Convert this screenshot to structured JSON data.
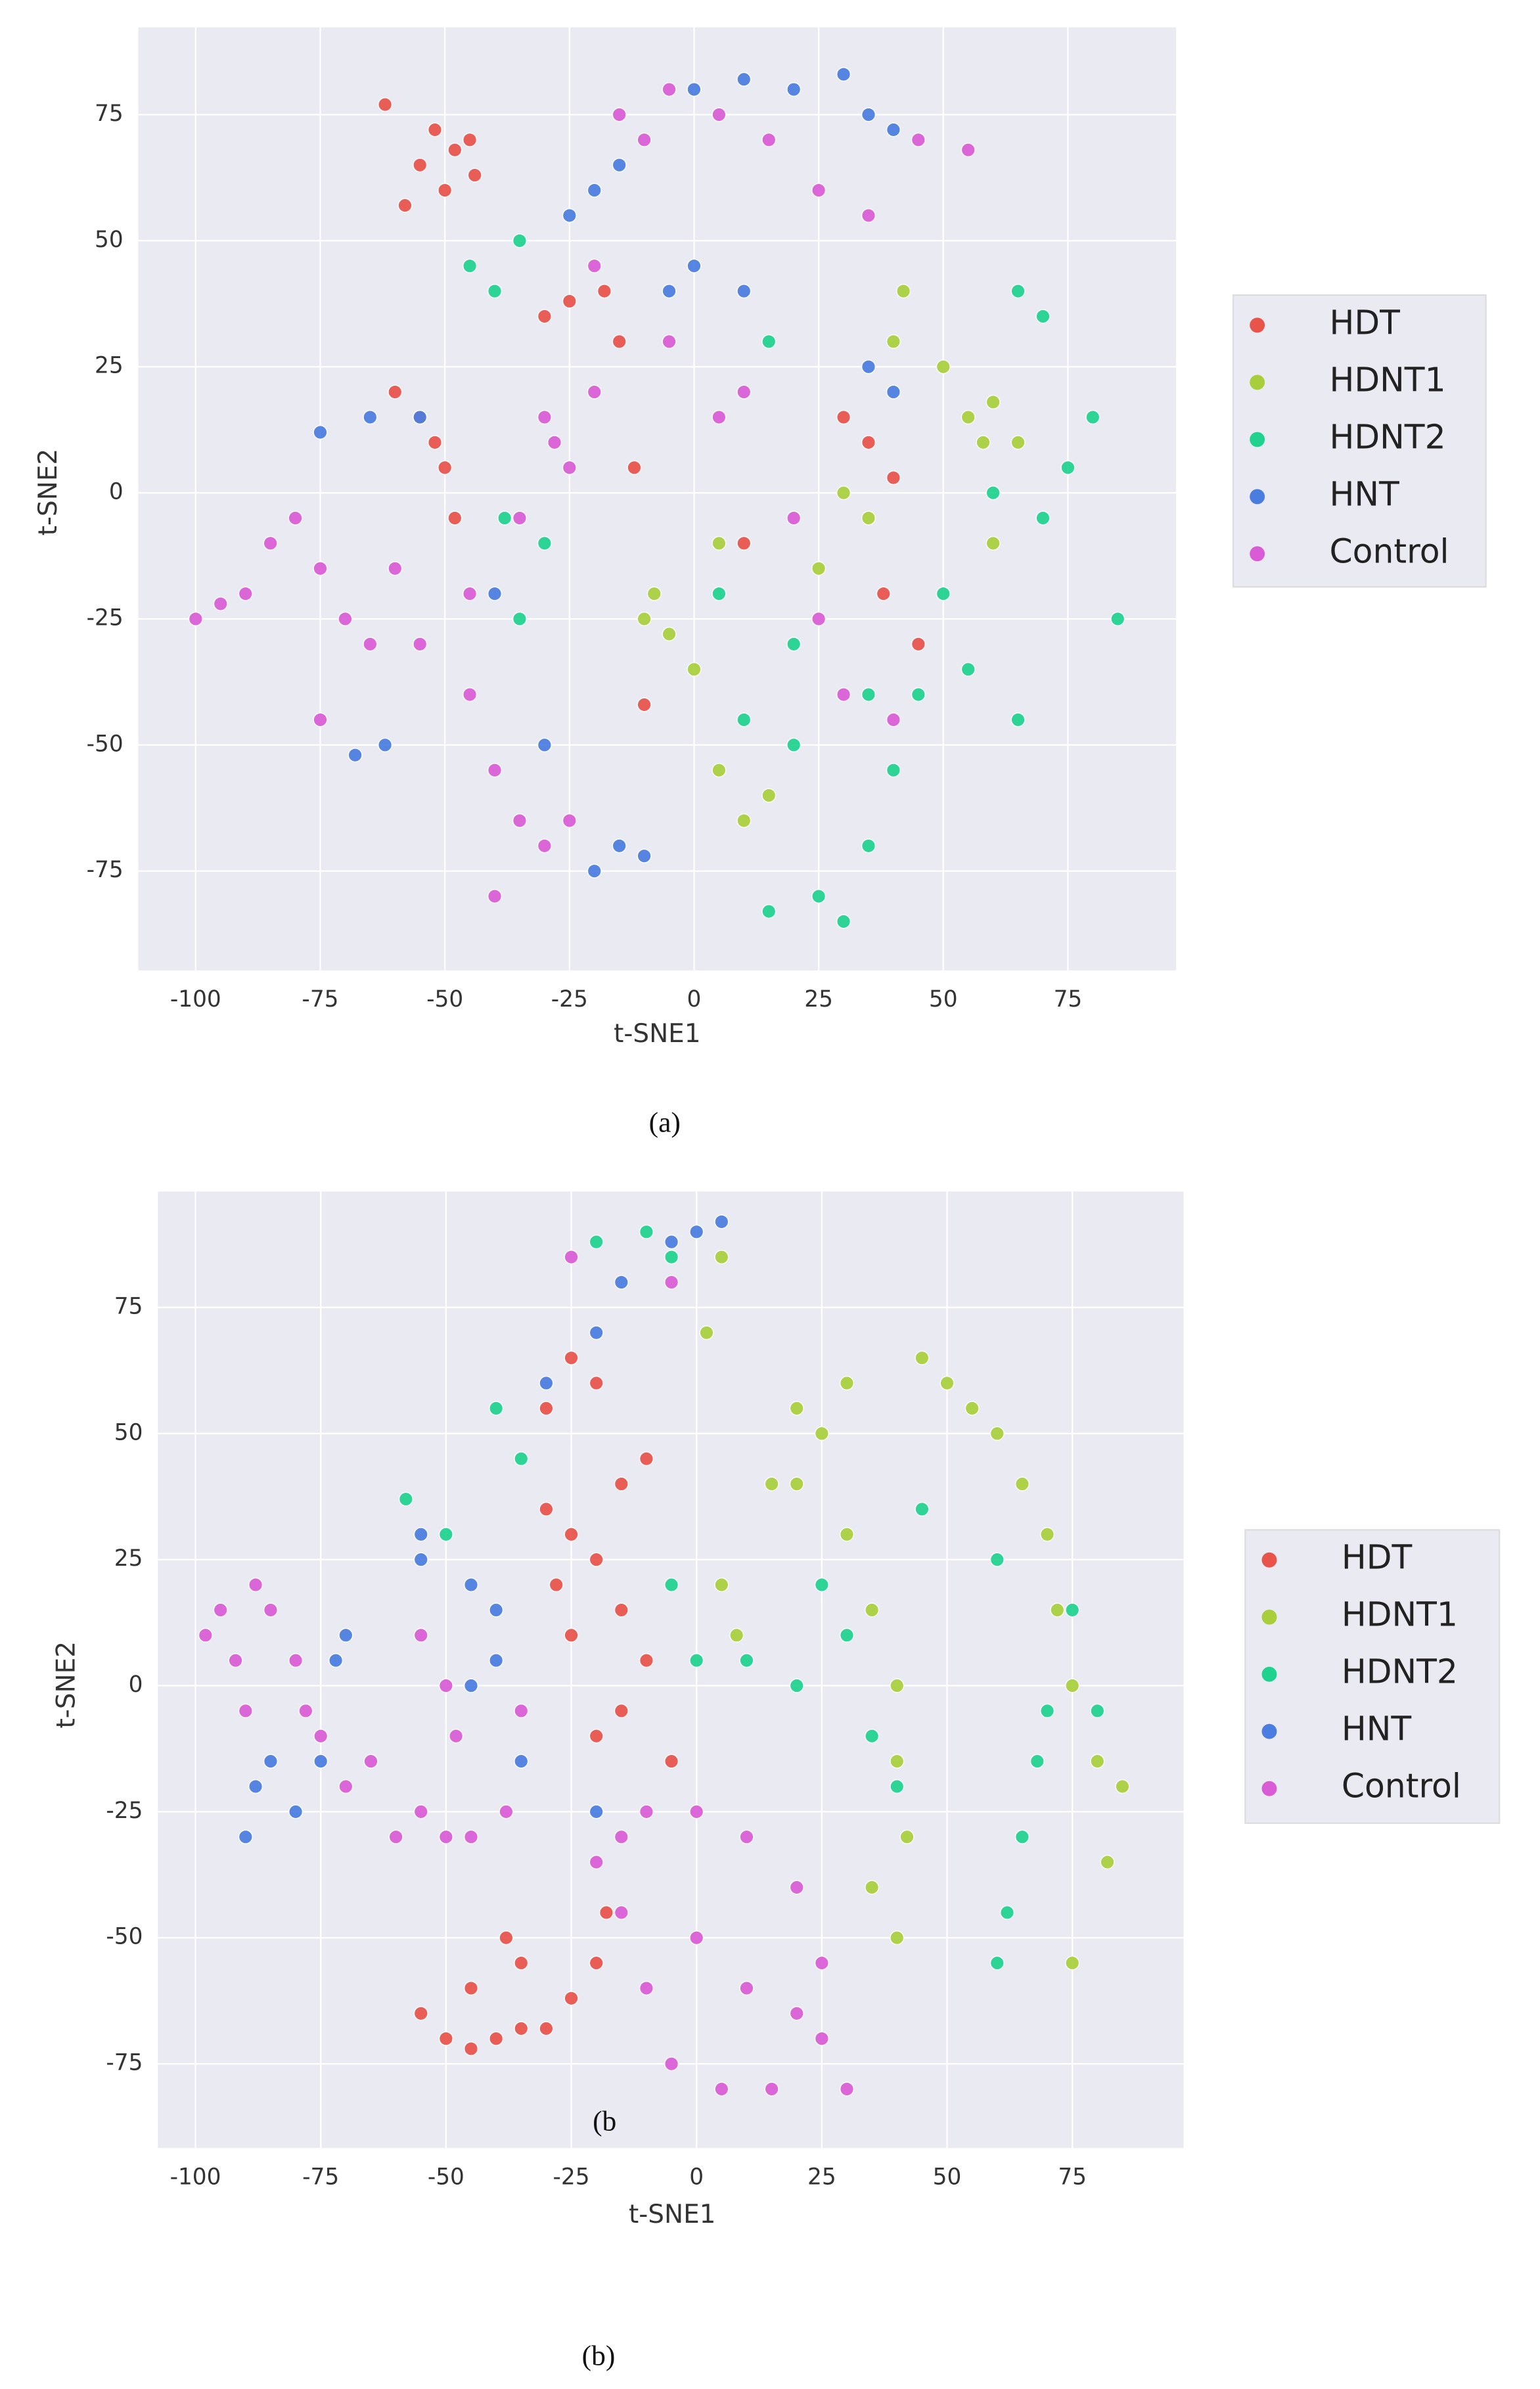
{
  "chart_data": [
    {
      "type": "scatter",
      "xlabel": "t-SNE1",
      "ylabel": "t-SNE2",
      "caption": "(a)",
      "xlim": [
        -111.5,
        96.7
      ],
      "ylim": [
        -94.7,
        92.3
      ],
      "xticks": [
        -100,
        -75,
        -50,
        -25,
        0,
        25,
        50,
        75
      ],
      "yticks": [
        -75,
        -50,
        -25,
        0,
        25,
        50,
        75
      ],
      "grid": true,
      "background": "#eaeaf2",
      "legend": "right",
      "series": [
        {
          "name": "HDT",
          "color": "#e8534a",
          "x": [
            -58,
            -55,
            -52,
            -48,
            -45,
            -50,
            -44,
            -62,
            -60,
            -55,
            -50,
            -48,
            -52,
            -30,
            -25,
            -18,
            -15,
            30,
            35,
            40,
            -12,
            38,
            45,
            -10,
            10
          ],
          "y": [
            57,
            65,
            72,
            68,
            70,
            60,
            63,
            77,
            20,
            15,
            5,
            -5,
            10,
            35,
            38,
            40,
            30,
            15,
            10,
            3,
            5,
            -20,
            -30,
            -42,
            -10
          ]
        },
        {
          "name": "HDNT1",
          "color": "#a8cf3b",
          "x": [
            -10,
            -8,
            -5,
            5,
            30,
            35,
            55,
            60,
            65,
            58,
            40,
            42,
            10,
            15,
            5,
            60,
            0,
            25,
            50
          ],
          "y": [
            -25,
            -20,
            -28,
            -10,
            0,
            -5,
            15,
            18,
            10,
            10,
            30,
            40,
            -65,
            -60,
            -55,
            -10,
            -35,
            -15,
            25
          ]
        },
        {
          "name": "HDNT2",
          "color": "#1fd38f",
          "x": [
            -45,
            -40,
            -35,
            -38,
            -30,
            10,
            20,
            25,
            15,
            30,
            35,
            40,
            45,
            50,
            55,
            65,
            70,
            75,
            80,
            85,
            70,
            65,
            60,
            35,
            20,
            5,
            -35,
            15
          ],
          "y": [
            45,
            40,
            50,
            -5,
            -10,
            -45,
            -50,
            -80,
            -83,
            -85,
            -70,
            -55,
            -40,
            -20,
            -35,
            -45,
            -5,
            5,
            15,
            -25,
            35,
            40,
            0,
            -40,
            -30,
            -20,
            -25,
            30
          ]
        },
        {
          "name": "HNT",
          "color": "#4a7de0",
          "x": [
            -75,
            -65,
            -55,
            -25,
            -20,
            -15,
            0,
            10,
            20,
            30,
            35,
            40,
            0,
            -5,
            35,
            40,
            -68,
            -62,
            -15,
            -10,
            -20,
            -40,
            -30,
            10
          ],
          "y": [
            12,
            15,
            15,
            55,
            60,
            65,
            80,
            82,
            80,
            83,
            75,
            72,
            45,
            40,
            25,
            20,
            -52,
            -50,
            -70,
            -72,
            -75,
            -20,
            -50,
            40
          ]
        },
        {
          "name": "Control",
          "color": "#d95bd6",
          "x": [
            -100,
            -95,
            -90,
            -85,
            -80,
            -75,
            -70,
            -65,
            -60,
            -55,
            -45,
            -40,
            -35,
            -30,
            -25,
            -45,
            -35,
            -30,
            -25,
            -20,
            -28,
            -15,
            -10,
            -5,
            5,
            15,
            25,
            35,
            45,
            55,
            -5,
            5,
            10,
            20,
            25,
            30,
            40,
            -20,
            -75,
            -40
          ],
          "y": [
            -25,
            -22,
            -20,
            -10,
            -5,
            -15,
            -25,
            -30,
            -15,
            -30,
            -40,
            -55,
            -65,
            -70,
            -65,
            -20,
            -5,
            15,
            5,
            20,
            10,
            75,
            70,
            80,
            75,
            70,
            60,
            55,
            70,
            68,
            30,
            15,
            20,
            -5,
            -25,
            -40,
            -45,
            45,
            -45,
            -80
          ]
        }
      ]
    },
    {
      "type": "scatter",
      "xlabel": "t-SNE1",
      "ylabel": "t-SNE2",
      "caption": "(b)",
      "annotation": "(b",
      "xlim": [
        -107.5,
        97.2
      ],
      "ylim": [
        -91.7,
        98
      ],
      "xticks": [
        -100,
        -75,
        -50,
        -25,
        0,
        25,
        50,
        75
      ],
      "yticks": [
        -75,
        -50,
        -25,
        0,
        25,
        50,
        75
      ],
      "grid": true,
      "background": "#eaeaf2",
      "legend": "right",
      "series": [
        {
          "name": "HDT",
          "color": "#e8534a",
          "x": [
            -55,
            -50,
            -45,
            -40,
            -35,
            -30,
            -25,
            -20,
            -18,
            -38,
            -45,
            -35,
            -30,
            -25,
            -20,
            -15,
            -10,
            -20,
            -25,
            -15,
            -20,
            -25,
            -10,
            -5,
            -30,
            -28,
            -15
          ],
          "y": [
            -65,
            -70,
            -72,
            -70,
            -68,
            -68,
            -62,
            -55,
            -45,
            -50,
            -60,
            -55,
            35,
            30,
            25,
            15,
            5,
            -10,
            10,
            40,
            60,
            65,
            45,
            -15,
            55,
            20,
            -5
          ]
        },
        {
          "name": "HDNT1",
          "color": "#a8cf3b",
          "x": [
            15,
            20,
            25,
            30,
            35,
            40,
            40,
            42,
            40,
            35,
            45,
            50,
            55,
            60,
            65,
            70,
            72,
            75,
            80,
            85,
            82,
            75,
            30,
            5,
            2,
            5,
            8,
            20
          ],
          "y": [
            40,
            55,
            50,
            30,
            15,
            0,
            -15,
            -30,
            -50,
            -40,
            65,
            60,
            55,
            50,
            40,
            30,
            15,
            0,
            -15,
            -20,
            -35,
            -55,
            60,
            85,
            70,
            20,
            10,
            40
          ]
        },
        {
          "name": "HDNT2",
          "color": "#1fd38f",
          "x": [
            -20,
            -10,
            -5,
            -58,
            -50,
            -40,
            -35,
            10,
            20,
            25,
            30,
            35,
            40,
            60,
            62,
            65,
            68,
            70,
            75,
            80,
            60,
            45,
            -5,
            0
          ],
          "y": [
            88,
            90,
            85,
            37,
            30,
            55,
            45,
            5,
            0,
            20,
            10,
            -10,
            -20,
            -55,
            -45,
            -30,
            -15,
            -5,
            15,
            -5,
            25,
            35,
            20,
            5
          ]
        },
        {
          "name": "HNT",
          "color": "#4a7de0",
          "x": [
            -90,
            -88,
            -85,
            -80,
            -75,
            -70,
            -72,
            -55,
            -55,
            -45,
            -40,
            -45,
            -35,
            -20,
            -15,
            -5,
            0,
            5,
            -30,
            -40,
            -20
          ],
          "y": [
            -30,
            -20,
            -15,
            -25,
            -15,
            10,
            5,
            25,
            30,
            20,
            15,
            0,
            -15,
            70,
            80,
            88,
            90,
            92,
            60,
            5,
            -25
          ]
        },
        {
          "name": "Control",
          "color": "#d95bd6",
          "x": [
            -98,
            -95,
            -92,
            -90,
            -88,
            -85,
            -80,
            -78,
            -75,
            -70,
            -65,
            -60,
            -55,
            -50,
            -48,
            -45,
            -55,
            -50,
            -35,
            -38,
            -20,
            -15,
            -10,
            0,
            10,
            20,
            25,
            20,
            15,
            5,
            -5,
            -10,
            0,
            10,
            25,
            30,
            -15,
            -25,
            -5
          ],
          "y": [
            10,
            15,
            5,
            -5,
            20,
            15,
            5,
            -5,
            -10,
            -20,
            -15,
            -30,
            -25,
            -30,
            -10,
            -30,
            10,
            0,
            -5,
            -25,
            -35,
            -30,
            -25,
            -25,
            -30,
            -40,
            -55,
            -65,
            -80,
            -80,
            -75,
            -60,
            -50,
            -60,
            -70,
            -80,
            -45,
            85,
            80
          ]
        }
      ]
    }
  ]
}
